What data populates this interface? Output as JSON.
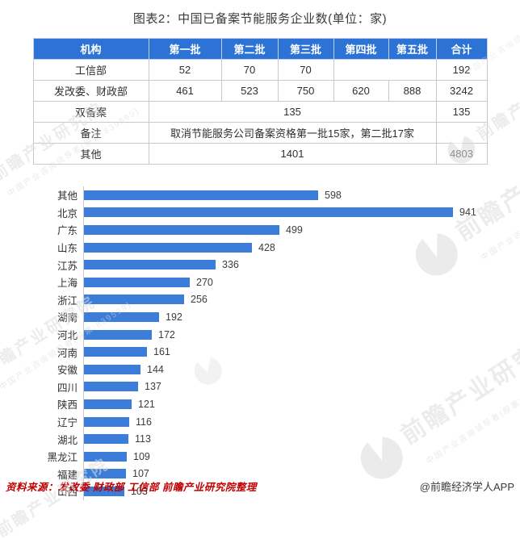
{
  "title": "图表2：中国已备案节能服务企业数(单位：家)",
  "table": {
    "headers": [
      "机构",
      "第一批",
      "第二批",
      "第三批",
      "第四批",
      "第五批",
      "合计"
    ],
    "row_gongxinbu": {
      "label": "工信部",
      "b1": "52",
      "b2": "70",
      "b3": "70",
      "b45": "",
      "total": "192"
    },
    "row_fagaiwei": {
      "label": "发改委、财政部",
      "b1": "461",
      "b2": "523",
      "b3": "750",
      "b4": "620",
      "b5": "888",
      "total": "3242"
    },
    "row_shuangbeian": {
      "label": "双备案",
      "merged": "135",
      "total": "135"
    },
    "row_beizhu": {
      "label": "备注",
      "merged": "取消节能服务公司备案资格第一批15家，第二批17家",
      "total": ""
    },
    "row_qita": {
      "label": "其他",
      "merged": "1401",
      "total": "4803"
    }
  },
  "chart_data": {
    "type": "bar",
    "orientation": "horizontal",
    "categories": [
      "其他",
      "北京",
      "广东",
      "山东",
      "江苏",
      "上海",
      "浙江",
      "湖南",
      "河北",
      "河南",
      "安徽",
      "四川",
      "陕西",
      "辽宁",
      "湖北",
      "黑龙江",
      "福建",
      "山西"
    ],
    "values": [
      598,
      941,
      499,
      428,
      336,
      270,
      256,
      192,
      172,
      161,
      144,
      137,
      121,
      116,
      113,
      109,
      107,
      103
    ],
    "title": "图表2：中国已备案节能服务企业数(单位：家)",
    "xlabel": "",
    "ylabel": "",
    "xlim": [
      0,
      970
    ],
    "grid": false,
    "legend": "none",
    "data_labels": "end-of-bar",
    "bar_color": "#3b7dd8"
  },
  "footer": {
    "source": "资料来源：发改委 财政部 工信部 前瞻产业研究院整理",
    "credit": "@前瞻经济学人APP"
  },
  "watermark": {
    "brand": "前瞻产业研究院",
    "tagline": "中国产业咨询领导者(股票:839599)"
  },
  "colors": {
    "table_header_bg": "#2d73d5",
    "table_header_text": "#ffffff",
    "bar": "#3b7dd8",
    "source_text": "#c00000",
    "axis_line": "#c8c8c8"
  }
}
